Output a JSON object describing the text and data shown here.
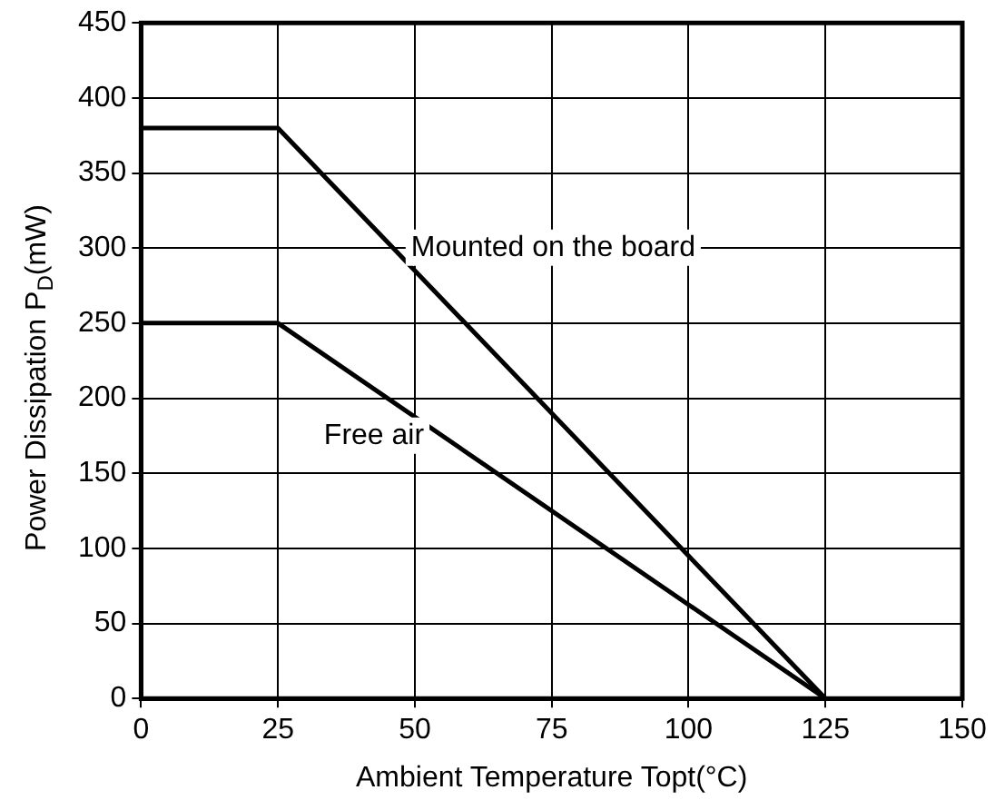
{
  "chart_data": {
    "type": "line",
    "xlabel": "Ambient Temperature Topt(°C)",
    "ylabel": "Power Dissipation P$_{D}$(mW)",
    "xlim": [
      0,
      150
    ],
    "xticks": [
      0,
      25,
      50,
      75,
      100,
      125,
      150
    ],
    "ylim": [
      0,
      450
    ],
    "yticks": [
      0,
      50,
      100,
      150,
      200,
      250,
      300,
      350,
      400,
      450
    ],
    "grid": true,
    "legend": false,
    "marker": "none",
    "line_style": "solid",
    "series": [
      {
        "name": "Mounted on the board",
        "color": "#000000",
        "x": [
          0,
          25,
          125
        ],
        "values": [
          380,
          380,
          0
        ]
      },
      {
        "name": "Free air",
        "color": "#000000",
        "x": [
          0,
          25,
          125
        ],
        "values": [
          250,
          250,
          0
        ]
      }
    ]
  }
}
